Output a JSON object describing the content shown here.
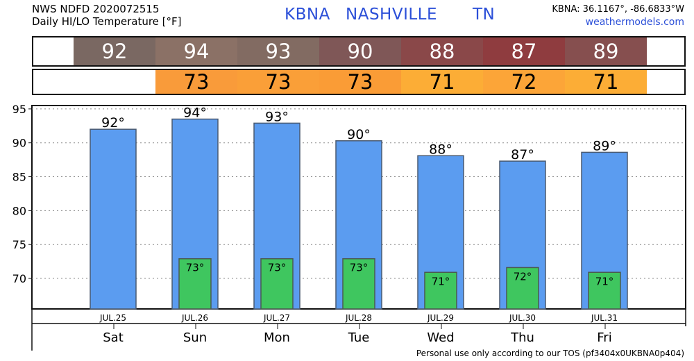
{
  "header": {
    "source_line": "NWS NDFD 2020072515",
    "subtitle": "Daily HI/LO Temperature [°F]",
    "station_id": "KBNA",
    "city": "NASHVILLE",
    "state": "TN",
    "coords": "KBNA: 36.1167°, -86.6833°W",
    "website": "weathermodels.com"
  },
  "hi_strip": [
    {
      "value": "92",
      "color": "#7a6862"
    },
    {
      "value": "94",
      "color": "#8b7166"
    },
    {
      "value": "93",
      "color": "#826b62"
    },
    {
      "value": "90",
      "color": "#7f5757"
    },
    {
      "value": "88",
      "color": "#8a4849"
    },
    {
      "value": "87",
      "color": "#8f3c3f"
    },
    {
      "value": "89",
      "color": "#864f4f"
    }
  ],
  "lo_strip": [
    {
      "value": "73",
      "color": "#f99b3a"
    },
    {
      "value": "73",
      "color": "#fa9f38"
    },
    {
      "value": "73",
      "color": "#fa9c36"
    },
    {
      "value": "71",
      "color": "#fcad36"
    },
    {
      "value": "72",
      "color": "#fca538"
    },
    {
      "value": "71",
      "color": "#fcad36"
    }
  ],
  "chart_data": {
    "type": "bar",
    "categories": [
      "Sat",
      "Sun",
      "Mon",
      "Tue",
      "Wed",
      "Thu",
      "Fri"
    ],
    "dates": [
      "JUL.25",
      "JUL.26",
      "JUL.27",
      "JUL.28",
      "JUL.29",
      "JUL.30",
      "JUL.31"
    ],
    "series": [
      {
        "values": [
          92,
          93.5,
          92.9,
          90.3,
          88.1,
          87.3,
          88.6
        ],
        "labels": [
          "92°",
          "94°",
          "93°",
          "90°",
          "88°",
          "87°",
          "89°"
        ],
        "color": "#5b9cf0"
      },
      {
        "values": [
          null,
          72.9,
          72.9,
          72.9,
          70.9,
          71.6,
          70.9
        ],
        "labels": [
          "",
          "73°",
          "73°",
          "73°",
          "71°",
          "72°",
          "71°"
        ],
        "color": "#3fc65f"
      }
    ],
    "yticks": [
      70,
      75,
      80,
      85,
      90,
      95
    ],
    "ylim": [
      65.5,
      95.5
    ],
    "grid": true
  },
  "footer": "Personal use only according to our TOS (pf3404x0UKBNA0p404)"
}
